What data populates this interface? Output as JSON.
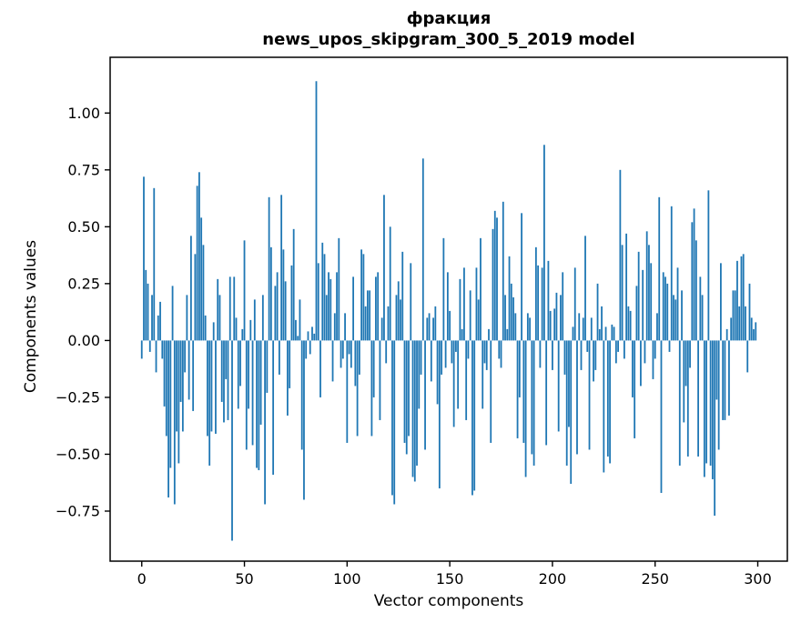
{
  "figure": {
    "title_line1": "фракция",
    "title_line2": "news_upos_skipgram_300_5_2019 model",
    "xlabel": "Vector components",
    "ylabel": "Components values"
  },
  "chart_data": {
    "type": "bar",
    "title": "фракция — news_upos_skipgram_300_5_2019 model",
    "xlabel": "Vector components",
    "ylabel": "Components values",
    "bar_color": "#1f77b4",
    "axis_color": "#000000",
    "background_color": "#ffffff",
    "grid": false,
    "legend_position": "none",
    "n_components": 300,
    "xlim": [
      -15.4,
      314.4
    ],
    "ylim": [
      -0.97,
      1.245
    ],
    "x_ticks": [
      0,
      50,
      100,
      150,
      200,
      250,
      300
    ],
    "y_ticks": [
      1.0,
      0.75,
      0.5,
      0.25,
      0.0,
      -0.25,
      -0.5,
      -0.75
    ],
    "y_tick_labels": [
      "1.00",
      "0.75",
      "0.50",
      "0.25",
      "0.00",
      "−0.25",
      "−0.50",
      "−0.75"
    ],
    "bar_width_data_units": 0.8,
    "values": [
      -0.08,
      0.72,
      0.31,
      0.25,
      -0.05,
      0.2,
      0.67,
      -0.14,
      0.11,
      0.17,
      -0.08,
      -0.29,
      -0.42,
      -0.69,
      -0.56,
      0.24,
      -0.72,
      -0.4,
      -0.54,
      -0.27,
      -0.4,
      -0.14,
      0.2,
      -0.26,
      0.46,
      -0.31,
      0.38,
      0.68,
      0.74,
      0.54,
      0.42,
      0.11,
      -0.42,
      -0.55,
      -0.4,
      0.08,
      -0.41,
      0.27,
      0.2,
      -0.27,
      -0.36,
      -0.17,
      -0.35,
      0.28,
      -0.88,
      0.28,
      0.1,
      -0.3,
      -0.2,
      0.05,
      0.44,
      -0.48,
      -0.3,
      0.09,
      -0.46,
      0.18,
      -0.56,
      -0.57,
      -0.37,
      0.2,
      -0.72,
      -0.23,
      0.63,
      0.41,
      -0.59,
      0.24,
      0.3,
      -0.15,
      0.64,
      0.4,
      0.26,
      -0.33,
      -0.21,
      0.33,
      0.49,
      0.09,
      0.02,
      0.18,
      -0.48,
      -0.7,
      -0.08,
      0.04,
      -0.06,
      0.06,
      0.03,
      1.14,
      0.34,
      -0.25,
      0.43,
      0.38,
      0.2,
      0.3,
      0.27,
      -0.18,
      0.12,
      0.3,
      0.45,
      -0.12,
      -0.08,
      0.12,
      -0.45,
      -0.06,
      -0.12,
      0.28,
      -0.2,
      -0.42,
      -0.15,
      0.4,
      0.38,
      0.15,
      0.22,
      0.22,
      -0.42,
      -0.25,
      0.28,
      0.3,
      -0.35,
      0.1,
      0.64,
      -0.1,
      0.15,
      0.5,
      -0.68,
      -0.72,
      0.2,
      0.26,
      0.18,
      0.39,
      -0.45,
      -0.5,
      -0.42,
      0.34,
      -0.6,
      -0.62,
      -0.55,
      -0.3,
      -0.15,
      0.8,
      -0.48,
      0.1,
      0.12,
      -0.18,
      0.1,
      0.15,
      -0.28,
      -0.65,
      -0.15,
      0.45,
      -0.12,
      0.3,
      0.13,
      -0.1,
      -0.38,
      -0.05,
      -0.3,
      0.27,
      0.05,
      0.32,
      -0.35,
      -0.08,
      0.22,
      -0.68,
      -0.66,
      0.32,
      0.18,
      0.45,
      -0.3,
      -0.1,
      -0.13,
      0.05,
      -0.45,
      0.49,
      0.57,
      0.54,
      -0.08,
      -0.12,
      0.61,
      0.2,
      0.05,
      0.37,
      0.25,
      0.19,
      0.12,
      -0.43,
      -0.25,
      0.56,
      -0.45,
      -0.6,
      0.12,
      0.1,
      -0.5,
      -0.55,
      0.41,
      0.33,
      -0.12,
      0.32,
      0.86,
      -0.46,
      0.35,
      0.13,
      -0.13,
      0.14,
      0.21,
      -0.4,
      0.2,
      0.3,
      -0.15,
      -0.55,
      -0.38,
      -0.63,
      0.06,
      0.32,
      -0.5,
      0.12,
      -0.13,
      0.1,
      0.46,
      -0.05,
      -0.48,
      0.1,
      -0.18,
      -0.13,
      0.25,
      0.05,
      0.15,
      -0.58,
      0.06,
      -0.51,
      -0.54,
      0.07,
      0.06,
      -0.1,
      -0.05,
      0.75,
      0.42,
      -0.08,
      0.47,
      0.15,
      0.13,
      -0.25,
      -0.43,
      0.24,
      0.39,
      -0.2,
      0.31,
      -0.1,
      0.48,
      0.42,
      0.34,
      -0.17,
      -0.08,
      0.12,
      0.63,
      -0.67,
      0.3,
      0.28,
      0.25,
      -0.05,
      0.59,
      0.2,
      0.18,
      0.32,
      -0.55,
      0.22,
      -0.36,
      -0.2,
      -0.51,
      -0.12,
      0.52,
      0.58,
      0.44,
      -0.51,
      0.28,
      0.2,
      -0.6,
      -0.54,
      0.66,
      -0.55,
      -0.61,
      -0.77,
      -0.26,
      -0.48,
      0.34,
      -0.35,
      -0.35,
      0.05,
      -0.33,
      0.1,
      0.22,
      0.22,
      0.35,
      0.15,
      0.37,
      0.38,
      0.15,
      -0.14,
      0.25,
      0.1,
      0.05,
      0.08
    ]
  }
}
